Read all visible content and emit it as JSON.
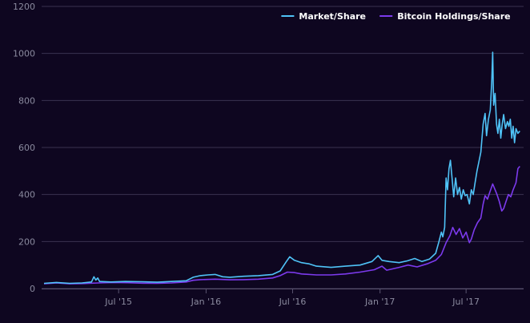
{
  "chart_data": {
    "type": "line",
    "title": "",
    "xlabel": "",
    "ylabel": "",
    "ylim": [
      0,
      1200
    ],
    "yticks": [
      "0",
      "200",
      "400",
      "600",
      "800",
      "1000",
      "1200"
    ],
    "xlim": [
      "2015-01-20",
      "2017-10-30"
    ],
    "xticks": [
      {
        "date": "2015-07-01",
        "label": "Jul '15"
      },
      {
        "date": "2016-01-01",
        "label": "Jan '16"
      },
      {
        "date": "2016-07-01",
        "label": "Jul '16"
      },
      {
        "date": "2017-01-01",
        "label": "Jan '17"
      },
      {
        "date": "2017-07-01",
        "label": "Jul '17"
      }
    ],
    "grid": true,
    "legend_position": "top-right",
    "series": [
      {
        "name": "Market/Share",
        "color": "#4fc3f7",
        "points": [
          [
            "2015-01-25",
            22
          ],
          [
            "2015-02-20",
            26
          ],
          [
            "2015-03-20",
            22
          ],
          [
            "2015-04-15",
            24
          ],
          [
            "2015-05-05",
            28
          ],
          [
            "2015-05-10",
            50
          ],
          [
            "2015-05-14",
            36
          ],
          [
            "2015-05-18",
            45
          ],
          [
            "2015-05-22",
            30
          ],
          [
            "2015-06-15",
            28
          ],
          [
            "2015-07-15",
            30
          ],
          [
            "2015-08-20",
            29
          ],
          [
            "2015-09-20",
            27
          ],
          [
            "2015-10-20",
            30
          ],
          [
            "2015-11-20",
            33
          ],
          [
            "2015-12-05",
            48
          ],
          [
            "2015-12-20",
            55
          ],
          [
            "2016-01-05",
            58
          ],
          [
            "2016-01-20",
            60
          ],
          [
            "2016-02-05",
            50
          ],
          [
            "2016-02-20",
            48
          ],
          [
            "2016-03-20",
            52
          ],
          [
            "2016-04-20",
            55
          ],
          [
            "2016-05-20",
            60
          ],
          [
            "2016-06-05",
            75
          ],
          [
            "2016-06-18",
            115
          ],
          [
            "2016-06-25",
            135
          ],
          [
            "2016-07-05",
            120
          ],
          [
            "2016-07-20",
            110
          ],
          [
            "2016-08-05",
            105
          ],
          [
            "2016-08-20",
            95
          ],
          [
            "2016-09-20",
            90
          ],
          [
            "2016-10-20",
            95
          ],
          [
            "2016-11-20",
            100
          ],
          [
            "2016-12-15",
            115
          ],
          [
            "2016-12-28",
            140
          ],
          [
            "2017-01-05",
            120
          ],
          [
            "2017-01-20",
            115
          ],
          [
            "2017-02-10",
            110
          ],
          [
            "2017-02-28",
            118
          ],
          [
            "2017-03-15",
            128
          ],
          [
            "2017-03-30",
            115
          ],
          [
            "2017-04-15",
            125
          ],
          [
            "2017-04-28",
            150
          ],
          [
            "2017-05-05",
            200
          ],
          [
            "2017-05-10",
            240
          ],
          [
            "2017-05-13",
            220
          ],
          [
            "2017-05-17",
            260
          ],
          [
            "2017-05-20",
            470
          ],
          [
            "2017-05-23",
            420
          ],
          [
            "2017-05-26",
            510
          ],
          [
            "2017-05-29",
            545
          ],
          [
            "2017-06-02",
            460
          ],
          [
            "2017-06-05",
            390
          ],
          [
            "2017-06-09",
            470
          ],
          [
            "2017-06-13",
            400
          ],
          [
            "2017-06-17",
            430
          ],
          [
            "2017-06-21",
            380
          ],
          [
            "2017-06-25",
            420
          ],
          [
            "2017-06-29",
            395
          ],
          [
            "2017-07-03",
            400
          ],
          [
            "2017-07-08",
            360
          ],
          [
            "2017-07-12",
            420
          ],
          [
            "2017-07-16",
            400
          ],
          [
            "2017-07-20",
            450
          ],
          [
            "2017-07-24",
            500
          ],
          [
            "2017-07-28",
            540
          ],
          [
            "2017-08-01",
            580
          ],
          [
            "2017-08-06",
            700
          ],
          [
            "2017-08-10",
            745
          ],
          [
            "2017-08-13",
            650
          ],
          [
            "2017-08-17",
            720
          ],
          [
            "2017-08-21",
            760
          ],
          [
            "2017-08-24",
            880
          ],
          [
            "2017-08-26",
            1005
          ],
          [
            "2017-08-28",
            780
          ],
          [
            "2017-08-31",
            830
          ],
          [
            "2017-09-03",
            700
          ],
          [
            "2017-09-06",
            660
          ],
          [
            "2017-09-09",
            720
          ],
          [
            "2017-09-12",
            640
          ],
          [
            "2017-09-15",
            700
          ],
          [
            "2017-09-18",
            740
          ],
          [
            "2017-09-22",
            680
          ],
          [
            "2017-09-26",
            710
          ],
          [
            "2017-09-29",
            690
          ],
          [
            "2017-10-02",
            720
          ],
          [
            "2017-10-05",
            640
          ],
          [
            "2017-10-08",
            690
          ],
          [
            "2017-10-11",
            620
          ],
          [
            "2017-10-14",
            680
          ],
          [
            "2017-10-18",
            660
          ],
          [
            "2017-10-22",
            670
          ]
        ]
      },
      {
        "name": "Bitcoin Holdings/Share",
        "color": "#7c3aed",
        "points": [
          [
            "2015-01-25",
            20
          ],
          [
            "2015-02-20",
            24
          ],
          [
            "2015-03-20",
            20
          ],
          [
            "2015-04-15",
            21
          ],
          [
            "2015-05-20",
            24
          ],
          [
            "2015-06-20",
            26
          ],
          [
            "2015-07-20",
            25
          ],
          [
            "2015-08-20",
            23
          ],
          [
            "2015-09-20",
            22
          ],
          [
            "2015-10-20",
            24
          ],
          [
            "2015-11-20",
            28
          ],
          [
            "2015-12-05",
            35
          ],
          [
            "2015-12-20",
            38
          ],
          [
            "2016-01-20",
            40
          ],
          [
            "2016-02-20",
            37
          ],
          [
            "2016-03-20",
            38
          ],
          [
            "2016-04-20",
            40
          ],
          [
            "2016-05-20",
            45
          ],
          [
            "2016-06-05",
            55
          ],
          [
            "2016-06-20",
            70
          ],
          [
            "2016-07-05",
            68
          ],
          [
            "2016-07-20",
            62
          ],
          [
            "2016-08-20",
            58
          ],
          [
            "2016-09-20",
            58
          ],
          [
            "2016-10-20",
            62
          ],
          [
            "2016-11-20",
            70
          ],
          [
            "2016-12-20",
            80
          ],
          [
            "2017-01-05",
            95
          ],
          [
            "2017-01-15",
            78
          ],
          [
            "2017-02-10",
            90
          ],
          [
            "2017-03-01",
            100
          ],
          [
            "2017-03-20",
            92
          ],
          [
            "2017-04-10",
            105
          ],
          [
            "2017-04-28",
            120
          ],
          [
            "2017-05-10",
            145
          ],
          [
            "2017-05-20",
            195
          ],
          [
            "2017-05-28",
            225
          ],
          [
            "2017-06-03",
            260
          ],
          [
            "2017-06-10",
            230
          ],
          [
            "2017-06-17",
            255
          ],
          [
            "2017-06-24",
            215
          ],
          [
            "2017-07-01",
            240
          ],
          [
            "2017-07-08",
            195
          ],
          [
            "2017-07-12",
            210
          ],
          [
            "2017-07-18",
            250
          ],
          [
            "2017-07-25",
            280
          ],
          [
            "2017-08-01",
            300
          ],
          [
            "2017-08-06",
            360
          ],
          [
            "2017-08-10",
            395
          ],
          [
            "2017-08-15",
            380
          ],
          [
            "2017-08-20",
            410
          ],
          [
            "2017-08-26",
            445
          ],
          [
            "2017-08-31",
            420
          ],
          [
            "2017-09-04",
            400
          ],
          [
            "2017-09-09",
            370
          ],
          [
            "2017-09-14",
            330
          ],
          [
            "2017-09-18",
            340
          ],
          [
            "2017-09-23",
            370
          ],
          [
            "2017-09-28",
            400
          ],
          [
            "2017-10-03",
            390
          ],
          [
            "2017-10-08",
            420
          ],
          [
            "2017-10-14",
            450
          ],
          [
            "2017-10-18",
            510
          ],
          [
            "2017-10-22",
            520
          ]
        ]
      }
    ]
  }
}
